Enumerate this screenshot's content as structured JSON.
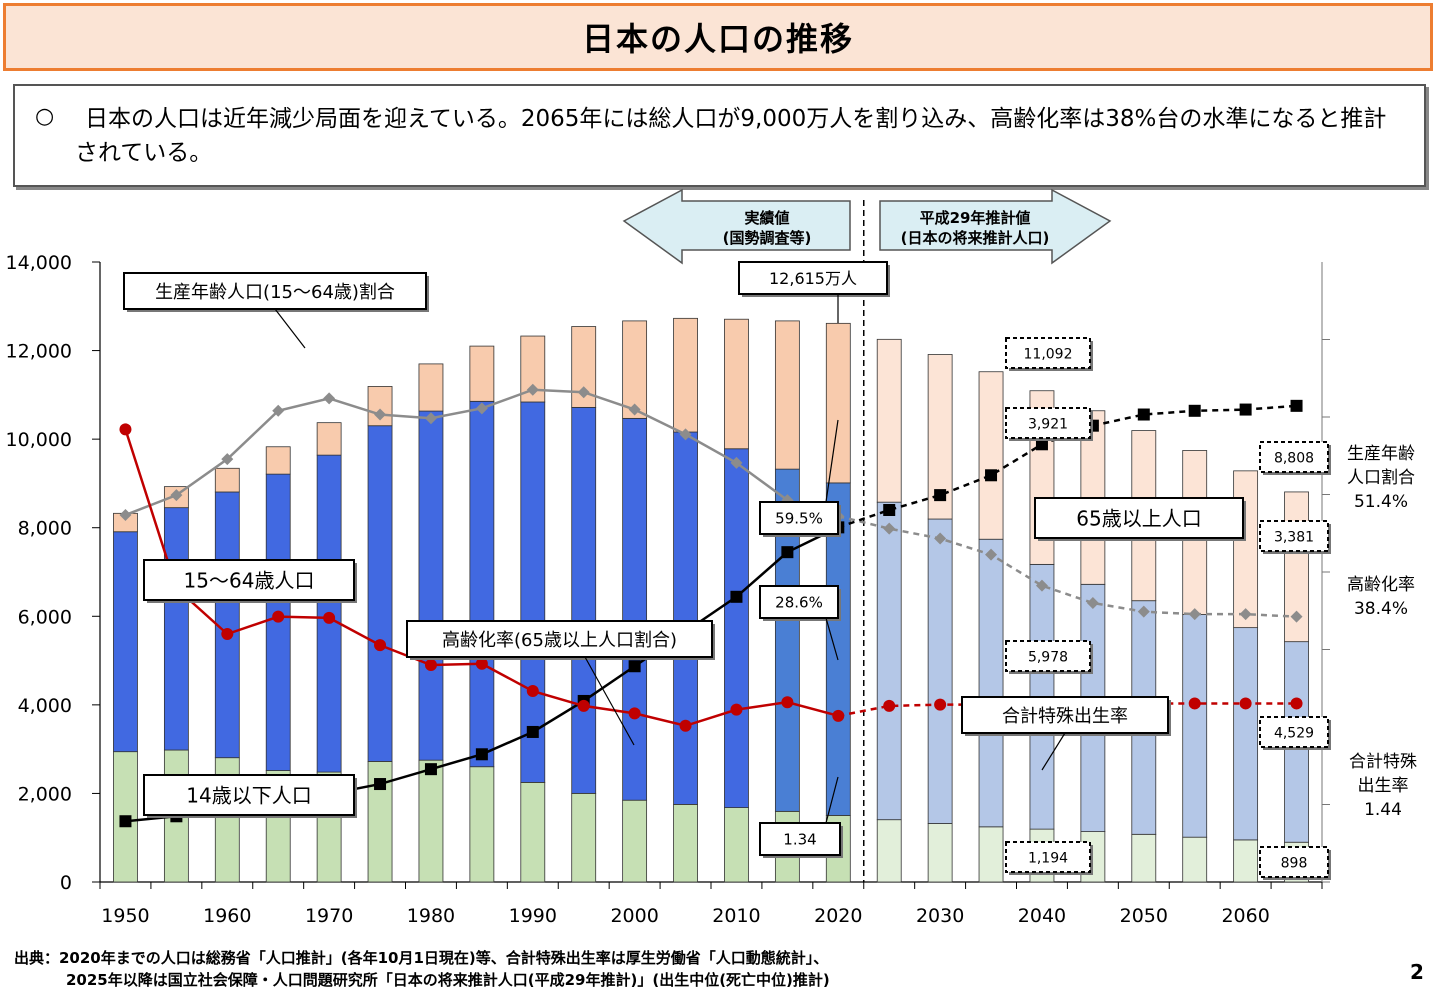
{
  "header": {
    "title": "日本の人口の推移"
  },
  "summary": {
    "bullet": "○",
    "text": "日本の人口は近年減少局面を迎えている。2065年には総人口が9,000万人を割り込み、高齢化率は38%台の水準になると推計されている。"
  },
  "chart_data": {
    "type": "bar",
    "yaxis": {
      "ylim": [
        0,
        14000
      ],
      "ticks": [
        "14,000",
        "12,000",
        "10,000",
        "8,000",
        "6,000",
        "4,000",
        "2,000",
        "0"
      ]
    },
    "x_tick_labels": [
      "1950",
      "1960",
      "1970",
      "1980",
      "1990",
      "2000",
      "2010",
      "2020",
      "2030",
      "2040",
      "2050",
      "2060"
    ],
    "years": [
      1950,
      1955,
      1960,
      1965,
      1970,
      1975,
      1980,
      1985,
      1990,
      1995,
      2000,
      2005,
      2010,
      2015,
      2020,
      2025,
      2030,
      2035,
      2040,
      2045,
      2050,
      2055,
      2060,
      2065
    ],
    "series": [
      {
        "name": "14歳以下人口",
        "values": [
          2943,
          2980,
          2807,
          2517,
          2482,
          2722,
          2751,
          2603,
          2249,
          2001,
          1847,
          1752,
          1680,
          1595,
          1503,
          1407,
          1321,
          1246,
          1194,
          1138,
          1077,
          1012,
          951,
          898
        ]
      },
      {
        "name": "15〜64歳人口",
        "values": [
          4966,
          5473,
          6000,
          6693,
          7157,
          7581,
          7883,
          8251,
          8590,
          8716,
          8622,
          8409,
          8103,
          7728,
          7509,
          7170,
          6875,
          6494,
          5978,
          5584,
          5275,
          5028,
          4793,
          4529
        ]
      },
      {
        "name": "65歳以上人口",
        "values": [
          416,
          475,
          535,
          618,
          733,
          887,
          1065,
          1247,
          1489,
          1826,
          2201,
          2567,
          2925,
          3347,
          3603,
          3677,
          3716,
          3782,
          3921,
          3919,
          3841,
          3704,
          3540,
          3381
        ]
      },
      {
        "name": "生産年齢人口割合",
        "values": [
          59.6,
          61.2,
          64.1,
          68.0,
          69.0,
          67.7,
          67.4,
          68.2,
          69.7,
          69.5,
          68.1,
          66.1,
          63.8,
          60.8,
          59.5,
          58.5,
          57.7,
          56.4,
          53.9,
          52.5,
          51.8,
          51.6,
          51.6,
          51.4
        ]
      },
      {
        "name": "高齢化率（65歳以上人口割合）",
        "values": [
          4.9,
          5.3,
          5.7,
          6.3,
          7.1,
          7.9,
          9.1,
          10.3,
          12.1,
          14.6,
          17.4,
          20.2,
          23.0,
          26.6,
          28.6,
          30.0,
          31.2,
          32.8,
          35.3,
          36.8,
          37.7,
          38.0,
          38.1,
          38.4
        ]
      },
      {
        "name": "合計特殊出生率",
        "values": [
          3.65,
          2.37,
          2.0,
          2.14,
          2.13,
          1.91,
          1.75,
          1.76,
          1.54,
          1.42,
          1.36,
          1.26,
          1.39,
          1.45,
          1.34,
          1.42,
          1.43,
          1.43,
          1.43,
          1.44,
          1.44,
          1.44,
          1.44,
          1.44
        ]
      }
    ],
    "totals_shown": {
      "2020": "12,615万人"
    },
    "value_labels": {
      "2040_total": "11,092",
      "2040_65plus": "3,921",
      "2040_15_64": "5,978",
      "2040_0_14": "1,194",
      "2065_total": "8,808",
      "2065_65plus": "3,381",
      "2065_15_64": "4,529",
      "2065_0_14": "898"
    },
    "annotations": {
      "actual": [
        "実績値",
        "(国勢調査等)"
      ],
      "projection": [
        "平成29年推計値",
        "(日本の将来推計人口)"
      ],
      "working_age_ratio_label": "生産年齢人口(15〜64歳)割合",
      "age15_64_label": "15〜64歳人口",
      "aging_rate_label": "高齢化率(65歳以上人口割合)",
      "age0_14_label": "14歳以下人口",
      "age65_label": "65歳以上人口",
      "tfr_label": "合計特殊出生率",
      "val_595": "59.5%",
      "val_286": "28.6%",
      "val_134": "1.34"
    },
    "right_labels": {
      "working": [
        "生産年齢",
        "人口割合",
        "51.4%"
      ],
      "aging": [
        "高齢化率",
        "38.4%"
      ],
      "tfr": [
        "合計特殊",
        "出生率",
        "1.44"
      ]
    },
    "colors": {
      "child_actual": "#c6e0b4",
      "child_proj": "#e2efda",
      "work_actual": "#4169e1",
      "work_2015": "#4a7fd4",
      "work_proj": "#b4c7e7",
      "old_actual": "#f8cbad",
      "old_proj": "#fce4d6",
      "working_line": "#8c8c8c",
      "aging_line": "#000000",
      "tfr_line": "#c00000"
    }
  },
  "footer": {
    "source_line1": "出典：2020年までの人口は総務省「人口推計」(各年10月1日現在)等、合計特殊出生率は厚生労働省「人口動態統計」、",
    "source_line2": "2025年以降は国立社会保障・人口問題研究所「日本の将来推計人口(平成29年推計)」(出生中位(死亡中位)推計)",
    "page": "2"
  }
}
